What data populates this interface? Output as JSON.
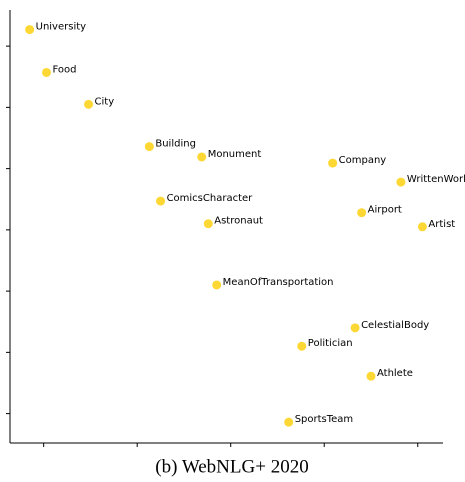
{
  "chart_data": {
    "type": "scatter",
    "caption": "(b) WebNLG+ 2020",
    "labels": [
      "University",
      "Food",
      "City",
      "Building",
      "Monument",
      "Company",
      "WrittenWork",
      "ComicsCharacter",
      "Astronaut",
      "Airport",
      "Artist",
      "MeanOfTransportation",
      "CelestialBody",
      "Politician",
      "Athlete",
      "SportsTeam"
    ],
    "x": [
      -2.15,
      -1.97,
      -1.52,
      -0.87,
      -0.31,
      1.09,
      1.82,
      -0.75,
      -0.24,
      1.4,
      2.05,
      -0.15,
      1.33,
      0.76,
      1.5,
      0.62
    ],
    "values": [
      3.27,
      2.57,
      2.05,
      1.36,
      1.19,
      1.09,
      0.78,
      0.47,
      0.1,
      0.28,
      0.05,
      -0.9,
      -1.6,
      -1.9,
      -2.39,
      -3.14
    ],
    "color": "#fdd835",
    "xlim": [
      -2.36,
      2.27
    ],
    "ylim": [
      -3.48,
      3.59
    ],
    "xticks": [
      -2,
      -1,
      0,
      1,
      2
    ],
    "yticks": [
      -3,
      -2,
      -1,
      0,
      1,
      2,
      3
    ]
  }
}
